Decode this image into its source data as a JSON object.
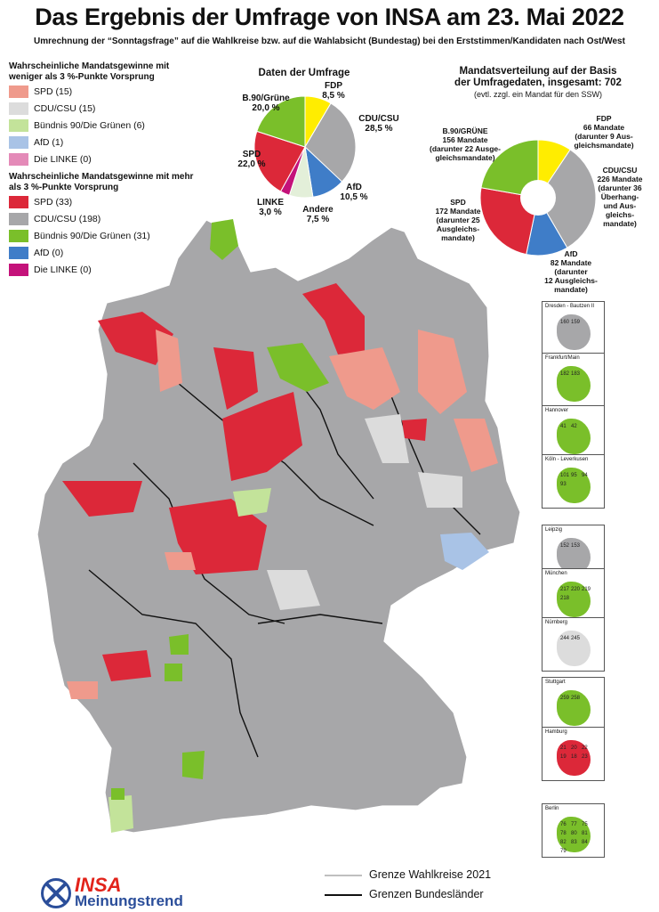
{
  "title": "Das Ergebnis der Umfrage von INSA am 23. Mai 2022",
  "subtitle": "Umrechnung der “Sonntagsfrage” auf die Wahlkreise bzw. auf die Wahlabsicht (Bundestag) bei den Erststimmen/Kandidaten nach Ost/West",
  "legend_weak": {
    "heading": "Wahrscheinliche Mandatsgewinne mit weniger als 3 %-Punkte Vorsprung",
    "items": [
      {
        "label": "SPD (15)",
        "color": "#ef9a8c"
      },
      {
        "label": "CDU/CSU (15)",
        "color": "#dcdcdc"
      },
      {
        "label": "Bündnis 90/Die Grünen (6)",
        "color": "#c3e39a"
      },
      {
        "label": "AfD (1)",
        "color": "#a9c3e6"
      },
      {
        "label": "Die LINKE (0)",
        "color": "#e48ab8"
      }
    ]
  },
  "legend_strong": {
    "heading": "Wahrscheinliche Mandatsgewinne mit mehr als 3 %-Punkte Vorsprung",
    "items": [
      {
        "label": "SPD (33)",
        "color": "#dc2839"
      },
      {
        "label": "CDU/CSU (198)",
        "color": "#a7a7a9"
      },
      {
        "label": "Bündnis 90/Die Grünen (31)",
        "color": "#7abf2a"
      },
      {
        "label": "AfD (0)",
        "color": "#3f7dc8"
      },
      {
        "label": "Die LINKE (0)",
        "color": "#c4127a"
      }
    ]
  },
  "poll": {
    "title": "Daten der Umfrage",
    "slices": [
      {
        "party": "FDP",
        "value_text": "8,5 %",
        "value": 8.5,
        "color": "#ffed00"
      },
      {
        "party": "CDU/CSU",
        "value_text": "28,5 %",
        "value": 28.5,
        "color": "#a7a7a9"
      },
      {
        "party": "AfD",
        "value_text": "10,5 %",
        "value": 10.5,
        "color": "#3f7dc8"
      },
      {
        "party": "Andere",
        "value_text": "7,5 %",
        "value": 7.5,
        "color": "#e3efd9"
      },
      {
        "party": "LINKE",
        "value_text": "3,0 %",
        "value": 3.0,
        "color": "#c4127a"
      },
      {
        "party": "SPD",
        "value_text": "22,0 %",
        "value": 22.0,
        "color": "#dc2839"
      },
      {
        "party": "B.90/Grüne",
        "value_text": "20,0 %",
        "value": 20.0,
        "color": "#7abf2a"
      }
    ]
  },
  "seats": {
    "title_line1": "Mandatsverteilung auf der Basis",
    "title_line2": "der Umfragedaten, insgesamt: 702",
    "title_note": "(evtl. zzgl. ein Mandat für den SSW)",
    "slices": [
      {
        "party": "FDP",
        "value": 66,
        "color": "#ffed00",
        "lines": [
          "FDP",
          "66 Mandate",
          "(darunter 9 Aus-",
          "gleichsmandate)"
        ]
      },
      {
        "party": "CDU/CSU",
        "value": 226,
        "color": "#a7a7a9",
        "lines": [
          "CDU/CSU",
          "226 Mandate",
          "(darunter 36",
          "Überhang-",
          "und Aus-",
          "gleichs-",
          "mandate)"
        ]
      },
      {
        "party": "AfD",
        "value": 82,
        "color": "#3f7dc8",
        "lines": [
          "AfD",
          "82 Mandate",
          "(darunter",
          "12 Ausgleichs-",
          "mandate)"
        ]
      },
      {
        "party": "SPD",
        "value": 172,
        "color": "#dc2839",
        "lines": [
          "SPD",
          "172 Mandate",
          "(darunter 25",
          "Ausgleichs-",
          "mandate)"
        ]
      },
      {
        "party": "B.90/GRÜNE",
        "value": 156,
        "color": "#7abf2a",
        "lines": [
          "B.90/GRÜNE",
          "156 Mandate",
          "(darunter 22 Ausge-",
          "gleichsmandate)"
        ]
      }
    ]
  },
  "insets": [
    {
      "name": "Dresden - Bautzen II",
      "numbers": [
        "160",
        "159"
      ],
      "color": "#a7a7a9"
    },
    {
      "name": "Frankfurt/Main",
      "numbers": [
        "182",
        "183"
      ],
      "color": "#7abf2a"
    },
    {
      "name": "Hannover",
      "numbers": [
        "41",
        "42"
      ],
      "color": "#7abf2a"
    },
    {
      "name": "Köln -  Leverkusen",
      "numbers": [
        "101",
        "95",
        "94",
        "93"
      ],
      "color": "#7abf2a"
    },
    {
      "name": "Leipzig",
      "numbers": [
        "152",
        "153"
      ],
      "color": "#a7a7a9"
    },
    {
      "name": "München",
      "numbers": [
        "217",
        "220",
        "219",
        "218"
      ],
      "color": "#7abf2a"
    },
    {
      "name": "Nürnberg",
      "numbers": [
        "244",
        "245"
      ],
      "color": "#dcdcdc"
    },
    {
      "name": "Stuttgart",
      "numbers": [
        "259",
        "258"
      ],
      "color": "#7abf2a"
    },
    {
      "name": "Hamburg",
      "numbers": [
        "21",
        "20",
        "22",
        "19",
        "18",
        "23"
      ],
      "color": "#dc2839"
    },
    {
      "name": "Berlin",
      "numbers": [
        "76",
        "77",
        "75",
        "78",
        "80",
        "81",
        "82",
        "83",
        "84",
        "79"
      ],
      "color": "#7abf2a"
    }
  ],
  "bottom_legend": {
    "wahlkreise": "Grenze Wahlkreise 2021",
    "bundeslaender": "Grenzen Bundesländer"
  },
  "logo": {
    "brand": "INSA",
    "sub": "Meinungstrend"
  }
}
